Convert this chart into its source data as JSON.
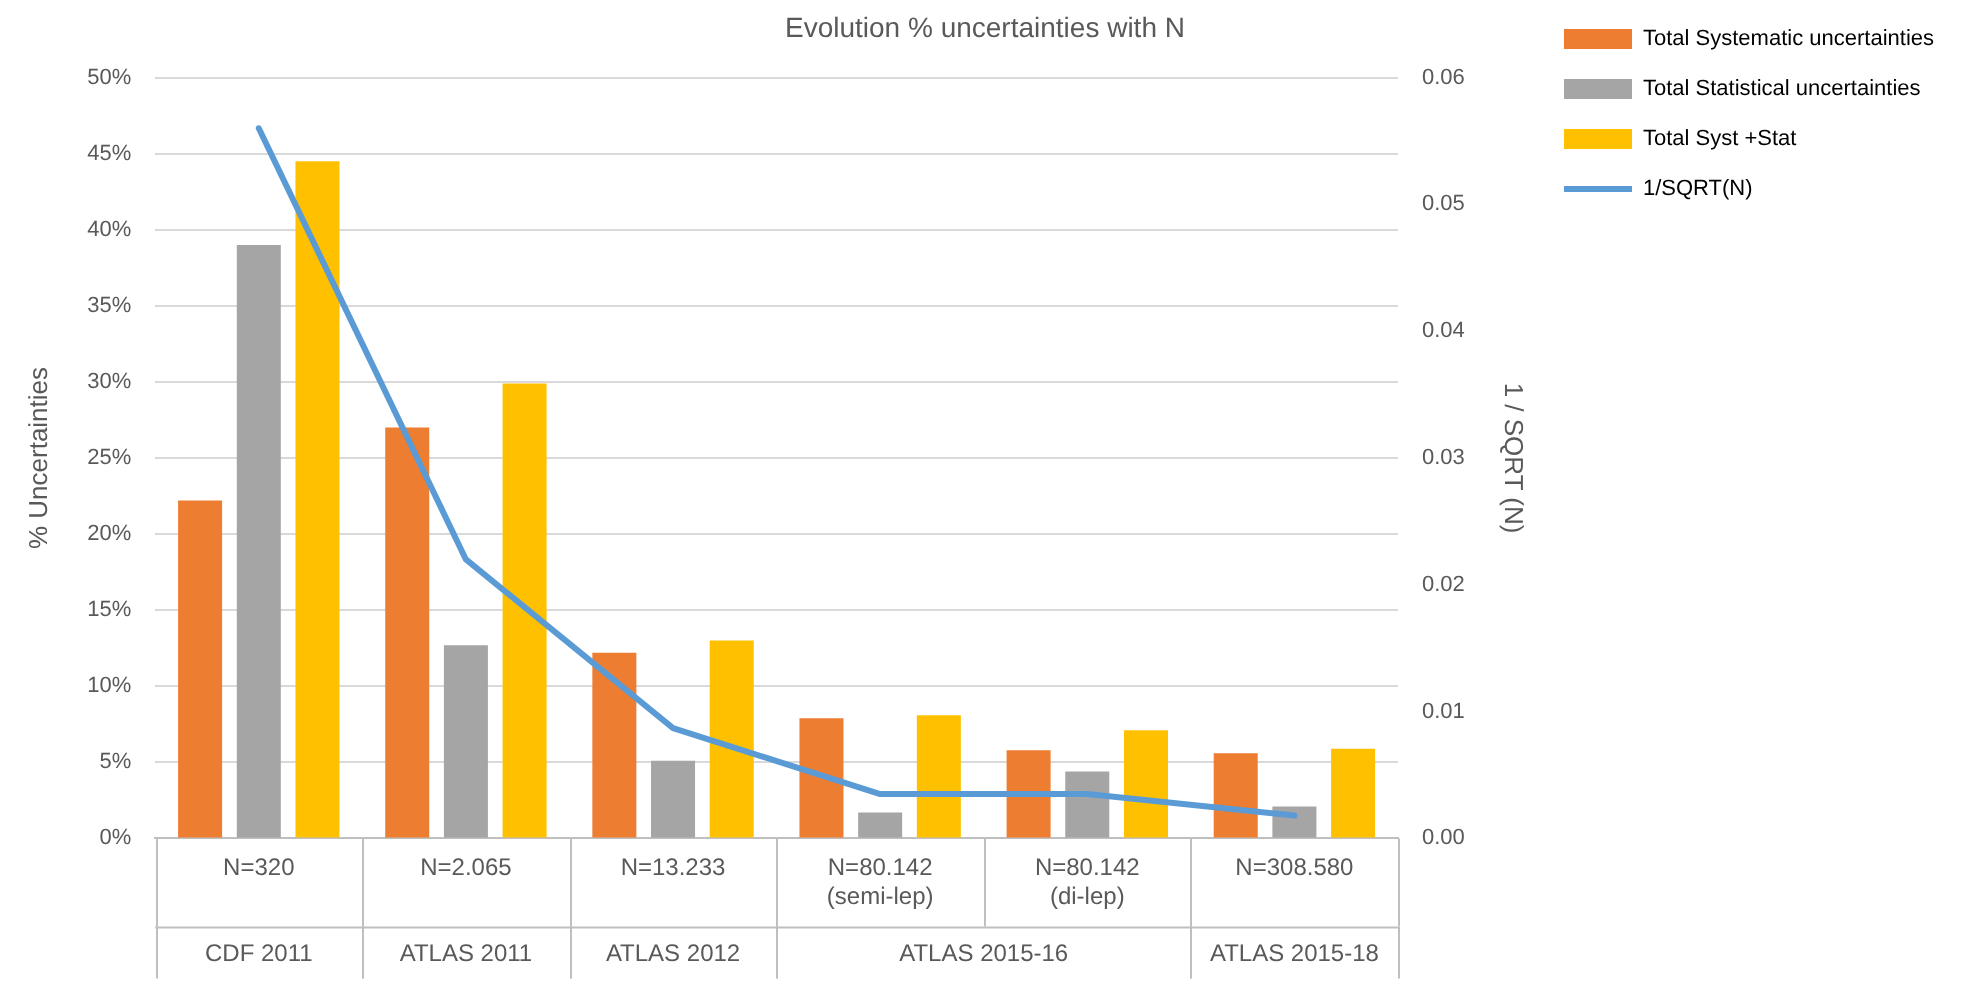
{
  "chart_data": {
    "type": "bar",
    "title": "Evolution % uncertainties with N",
    "ylabel": "% Uncertainties",
    "y2label": "1 / SQRT (N)",
    "categories": [
      "N=320",
      "N=2.065",
      "N=13.233",
      "N=80.142\n(semi-lep)",
      "N=80.142\n(di-lep)",
      "N=308.580"
    ],
    "series": [
      {
        "name": "Total Systematic uncertainties",
        "color": "#ed7d31",
        "values": [
          22.2,
          27.0,
          12.2,
          7.9,
          5.8,
          5.6
        ]
      },
      {
        "name": "Total Statistical uncertainties",
        "color": "#a5a5a5",
        "values": [
          39.0,
          12.7,
          5.1,
          1.7,
          4.4,
          2.1
        ]
      },
      {
        "name": "Total Syst +Stat",
        "color": "#ffc000",
        "values": [
          44.5,
          29.9,
          13.0,
          8.1,
          7.1,
          5.9
        ]
      },
      {
        "name": "1/SQRT(N)",
        "type": "line",
        "axis": "y2",
        "color": "#5b9bd5",
        "values": [
          0.056,
          0.022,
          0.0087,
          0.0035,
          0.0035,
          0.0018
        ]
      }
    ],
    "ylim": [
      0,
      50
    ],
    "yticks": [
      {
        "value": 0,
        "label": "0%"
      },
      {
        "value": 5,
        "label": "5%"
      },
      {
        "value": 10,
        "label": "10%"
      },
      {
        "value": 15,
        "label": "15%"
      },
      {
        "value": 20,
        "label": "20%"
      },
      {
        "value": 25,
        "label": "25%"
      },
      {
        "value": 30,
        "label": "30%"
      },
      {
        "value": 35,
        "label": "35%"
      },
      {
        "value": 40,
        "label": "40%"
      },
      {
        "value": 45,
        "label": "45%"
      },
      {
        "value": 50,
        "label": "50%"
      }
    ],
    "y2lim": [
      0,
      0.06
    ],
    "y2ticks": [
      {
        "value": 0,
        "label": "0.00"
      },
      {
        "value": 0.01,
        "label": "0.01"
      },
      {
        "value": 0.02,
        "label": "0.02"
      },
      {
        "value": 0.03,
        "label": "0.03"
      },
      {
        "value": 0.04,
        "label": "0.04"
      },
      {
        "value": 0.05,
        "label": "0.05"
      },
      {
        "value": 0.06,
        "label": "0.06"
      }
    ],
    "annotations": [
      "CDF 2011",
      "ATLAS 2011",
      "ATLAS 2012",
      "ATLAS 2015-16",
      "ATLAS 2015-18"
    ],
    "grid": "y",
    "legend": "right",
    "marker": "none",
    "line_style": "solid"
  }
}
